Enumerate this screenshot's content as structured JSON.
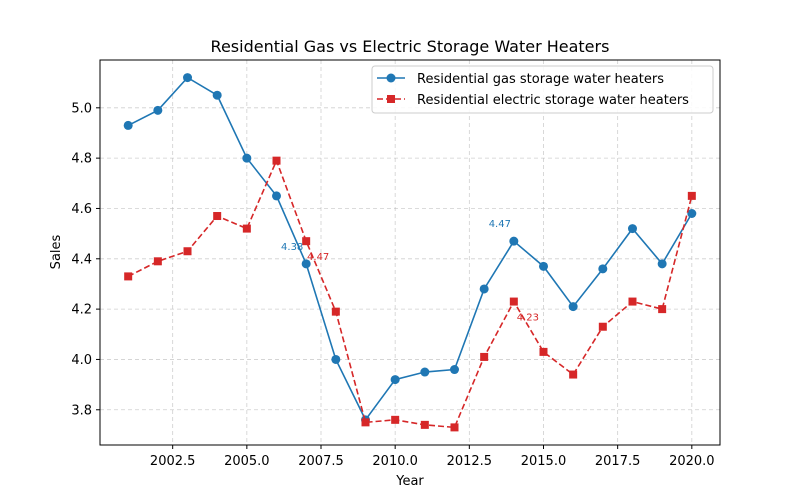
{
  "chart_data": {
    "type": "line",
    "title": "Residential Gas vs Electric Storage Water Heaters",
    "xlabel": "Year",
    "ylabel": "Sales",
    "x": [
      2001,
      2002,
      2003,
      2004,
      2005,
      2006,
      2007,
      2008,
      2009,
      2010,
      2011,
      2012,
      2013,
      2014,
      2015,
      2016,
      2017,
      2018,
      2019,
      2020
    ],
    "xlim": [
      2000.05,
      2020.95
    ],
    "ylim": [
      3.66,
      5.19
    ],
    "x_ticks": [
      2002.5,
      2005.0,
      2007.5,
      2010.0,
      2012.5,
      2015.0,
      2017.5,
      2020.0
    ],
    "x_tick_labels": [
      "2002.5",
      "2005.0",
      "2007.5",
      "2010.0",
      "2012.5",
      "2015.0",
      "2017.5",
      "2020.0"
    ],
    "y_ticks": [
      3.8,
      4.0,
      4.2,
      4.4,
      4.6,
      4.8,
      5.0
    ],
    "y_tick_labels": [
      "3.8",
      "4.0",
      "4.2",
      "4.4",
      "4.6",
      "4.8",
      "5.0"
    ],
    "grid": true,
    "legend_position": "upper right",
    "series": [
      {
        "name": "Residential gas storage water heaters",
        "color": "#1f77b4",
        "linestyle": "solid",
        "marker": "circle",
        "values": [
          4.93,
          4.99,
          5.12,
          5.05,
          4.8,
          4.65,
          4.38,
          4.0,
          3.76,
          3.92,
          3.95,
          3.96,
          4.28,
          4.47,
          4.37,
          4.21,
          4.36,
          4.52,
          4.38,
          4.58
        ]
      },
      {
        "name": "Residential electric storage water heaters",
        "color": "#d62728",
        "linestyle": "dashed",
        "marker": "square",
        "values": [
          4.33,
          4.39,
          4.43,
          4.57,
          4.52,
          4.79,
          4.47,
          4.19,
          3.75,
          3.76,
          3.74,
          3.73,
          4.01,
          4.23,
          4.03,
          3.94,
          4.13,
          4.23,
          4.2,
          4.65
        ]
      }
    ],
    "annotations": [
      {
        "text": "4.38",
        "series": 0,
        "x": 2007,
        "y": 4.38
      },
      {
        "text": "4.47",
        "series": 0,
        "x": 2014,
        "y": 4.47
      },
      {
        "text": "4.47",
        "series": 1,
        "x": 2007,
        "y": 4.47
      },
      {
        "text": "4.23",
        "series": 1,
        "x": 2014,
        "y": 4.23
      }
    ]
  }
}
